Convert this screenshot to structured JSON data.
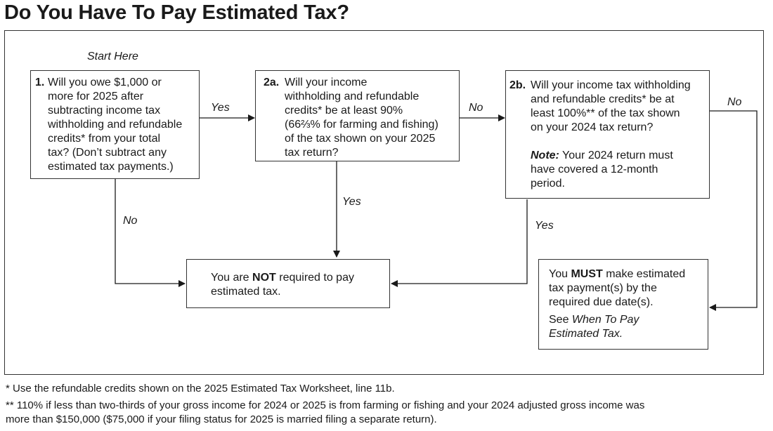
{
  "title": "Do You Have To Pay Estimated Tax?",
  "start_label": "Start Here",
  "q1": {
    "number": "1.",
    "lines": [
      "Will you owe $1,000 or",
      "more for 2025 after",
      "subtracting income tax",
      "withholding and refundable",
      "credits* from your total",
      "tax? (Don’t subtract any",
      "estimated tax payments.)"
    ]
  },
  "q2a": {
    "number": "2a.",
    "lines": [
      "Will your income",
      "withholding and refundable",
      "credits* be at least 90%",
      "(66⅔% for farming and fishing)",
      "of the tax shown on your 2025",
      "tax return?"
    ]
  },
  "q2b": {
    "number": "2b.",
    "lines": [
      "Will your income tax withholding",
      "and refundable credits* be at",
      "least 100%** of the tax shown",
      "on your 2024 tax return?"
    ],
    "note_label": "Note:",
    "note_lines": [
      "Your 2024 return must",
      "have covered a 12-month",
      "period."
    ]
  },
  "result_not": {
    "line1_pre": "You are ",
    "line1_bold": "NOT",
    "line1_post": " required to pay",
    "line2": "estimated tax."
  },
  "result_must": {
    "line1_pre": "You ",
    "line1_bold": "MUST",
    "line1_post": " make estimated",
    "line2": "tax payment(s) by the",
    "line3": "required due date(s).",
    "see_pre": "See ",
    "see_ital1": "When To Pay",
    "see_ital2": "Estimated Tax."
  },
  "edges": {
    "q1_yes": "Yes",
    "q1_no": "No",
    "q2a_no": "No",
    "q2a_yes": "Yes",
    "q2b_no": "No",
    "q2b_yes": "Yes"
  },
  "footnotes": {
    "one": "* Use the refundable credits shown on the 2025 Estimated Tax Worksheet, line 11b.",
    "two_line1": "** 110% if less than two-thirds of your gross income for 2024 or 2025 is from farming or fishing and your 2024 adjusted gross income was",
    "two_line2": "more than $150,000 ($75,000 if your filing status for 2025 is married filing a separate return)."
  }
}
